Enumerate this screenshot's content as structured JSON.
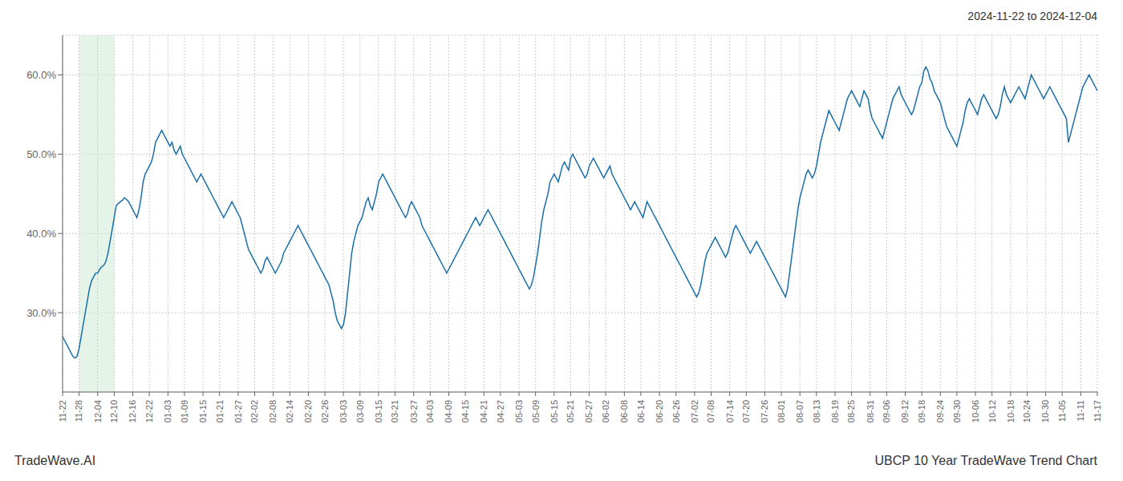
{
  "chart_data": {
    "type": "line",
    "title": "UBCP 10 Year TradeWave Trend Chart",
    "subtitle": "2024-11-22 to 2024-12-04",
    "annotations": [
      "TradeWave.AI"
    ],
    "color": "#1a6fa8",
    "grid": true,
    "ylim": [
      20.0,
      65.0
    ],
    "yticks": [
      {
        "value": 30.0,
        "label": "30.0%"
      },
      {
        "value": 40.0,
        "label": "40.0%"
      },
      {
        "value": 50.0,
        "label": "50.0%"
      },
      {
        "value": 60.0,
        "label": "60.0%"
      }
    ],
    "shaded_range": {
      "from": "11-28",
      "to": "12-10",
      "color": "#d4edda"
    },
    "categories": [
      "11-22",
      null,
      null,
      null,
      null,
      null,
      null,
      null,
      "11-28",
      null,
      null,
      null,
      null,
      null,
      null,
      null,
      null,
      "12-04",
      null,
      null,
      null,
      null,
      null,
      null,
      null,
      "12-10",
      null,
      null,
      null,
      null,
      null,
      null,
      null,
      null,
      "12-16",
      null,
      null,
      null,
      null,
      null,
      null,
      null,
      "12-22",
      null,
      null,
      null,
      null,
      null,
      null,
      null,
      null,
      "01-03",
      null,
      null,
      null,
      null,
      null,
      null,
      null,
      "01-09",
      null,
      null,
      null,
      null,
      null,
      null,
      null,
      null,
      "01-15",
      null,
      null,
      null,
      null,
      null,
      null,
      null,
      "01-21",
      null,
      null,
      null,
      null,
      null,
      null,
      null,
      null,
      "01-27",
      null,
      null,
      null,
      null,
      null,
      null,
      null,
      "02-02",
      null,
      null,
      null,
      null,
      null,
      null,
      null,
      null,
      "02-08",
      null,
      null,
      null,
      null,
      null,
      null,
      null,
      "02-14",
      null,
      null,
      null,
      null,
      null,
      null,
      null,
      null,
      "02-20",
      null,
      null,
      null,
      null,
      null,
      null,
      null,
      "02-26",
      null,
      null,
      null,
      null,
      null,
      null,
      null,
      null,
      "03-03",
      null,
      null,
      null,
      null,
      null,
      null,
      null,
      "03-09",
      null,
      null,
      null,
      null,
      null,
      null,
      null,
      null,
      "03-15",
      null,
      null,
      null,
      null,
      null,
      null,
      null,
      "03-21",
      null,
      null,
      null,
      null,
      null,
      null,
      null,
      null,
      "03-27",
      null,
      null,
      null,
      null,
      null,
      null,
      null,
      "04-03",
      null,
      null,
      null,
      null,
      null,
      null,
      null,
      null,
      "04-09",
      null,
      null,
      null,
      null,
      null,
      null,
      null,
      "04-15",
      null,
      null,
      null,
      null,
      null,
      null,
      null,
      null,
      "04-21",
      null,
      null,
      null,
      null,
      null,
      null,
      null,
      "04-27",
      null,
      null,
      null,
      null,
      null,
      null,
      null,
      null,
      "05-03",
      null,
      null,
      null,
      null,
      null,
      null,
      null,
      "05-09",
      null,
      null,
      null,
      null,
      null,
      null,
      null,
      null,
      "05-15",
      null,
      null,
      null,
      null,
      null,
      null,
      null,
      "05-21",
      null,
      null,
      null,
      null,
      null,
      null,
      null,
      null,
      "05-27",
      null,
      null,
      null,
      null,
      null,
      null,
      null,
      "06-02",
      null,
      null,
      null,
      null,
      null,
      null,
      null,
      null,
      "06-08",
      null,
      null,
      null,
      null,
      null,
      null,
      null,
      "06-14",
      null,
      null,
      null,
      null,
      null,
      null,
      null,
      null,
      "06-20",
      null,
      null,
      null,
      null,
      null,
      null,
      null,
      "06-26",
      null,
      null,
      null,
      null,
      null,
      null,
      null,
      null,
      "07-02",
      null,
      null,
      null,
      null,
      null,
      null,
      null,
      "07-08",
      null,
      null,
      null,
      null,
      null,
      null,
      null,
      null,
      "07-14",
      null,
      null,
      null,
      null,
      null,
      null,
      null,
      "07-20",
      null,
      null,
      null,
      null,
      null,
      null,
      null,
      null,
      "07-26",
      null,
      null,
      null,
      null,
      null,
      null,
      null,
      "08-01",
      null,
      null,
      null,
      null,
      null,
      null,
      null,
      null,
      "08-07",
      null,
      null,
      null,
      null,
      null,
      null,
      null,
      "08-13",
      null,
      null,
      null,
      null,
      null,
      null,
      null,
      null,
      "08-19",
      null,
      null,
      null,
      null,
      null,
      null,
      null,
      "08-25",
      null,
      null,
      null,
      null,
      null,
      null,
      null,
      null,
      "08-31",
      null,
      null,
      null,
      null,
      null,
      null,
      null,
      "09-06",
      null,
      null,
      null,
      null,
      null,
      null,
      null,
      null,
      "09-12",
      null,
      null,
      null,
      null,
      null,
      null,
      null,
      "09-18",
      null,
      null,
      null,
      null,
      null,
      null,
      null,
      null,
      "09-24",
      null,
      null,
      null,
      null,
      null,
      null,
      null,
      "09-30",
      null,
      null,
      null,
      null,
      null,
      null,
      null,
      null,
      "10-06",
      null,
      null,
      null,
      null,
      null,
      null,
      null,
      "10-12",
      null,
      null,
      null,
      null,
      null,
      null,
      null,
      null,
      "10-18",
      null,
      null,
      null,
      null,
      null,
      null,
      null,
      "10-24",
      null,
      null,
      null,
      null,
      null,
      null,
      null,
      null,
      "10-30",
      null,
      null,
      null,
      null,
      null,
      null,
      null,
      "11-05",
      null,
      null,
      null,
      null,
      null,
      null,
      null,
      null,
      "11-11",
      null,
      null,
      null,
      null,
      null,
      null,
      null,
      "11-17"
    ],
    "values": [
      27.0,
      26.5,
      26.0,
      25.5,
      25.0,
      24.5,
      24.3,
      24.5,
      25.5,
      27.0,
      28.5,
      30.0,
      31.5,
      33.0,
      34.0,
      34.5,
      35.0,
      35.0,
      35.5,
      35.8,
      36.0,
      36.5,
      37.5,
      39.0,
      40.5,
      42.0,
      43.5,
      43.8,
      44.0,
      44.2,
      44.5,
      44.3,
      44.0,
      43.5,
      43.0,
      42.5,
      42.0,
      43.0,
      44.5,
      46.5,
      47.5,
      48.0,
      48.5,
      49.0,
      50.0,
      51.5,
      52.0,
      52.5,
      53.0,
      52.5,
      52.0,
      51.5,
      51.0,
      51.5,
      50.5,
      50.0,
      50.5,
      51.0,
      50.0,
      49.5,
      49.0,
      48.5,
      48.0,
      47.5,
      47.0,
      46.5,
      47.0,
      47.5,
      47.0,
      46.5,
      46.0,
      45.5,
      45.0,
      44.5,
      44.0,
      43.5,
      43.0,
      42.5,
      42.0,
      42.5,
      43.0,
      43.5,
      44.0,
      43.5,
      43.0,
      42.5,
      42.0,
      41.0,
      40.0,
      39.0,
      38.0,
      37.5,
      37.0,
      36.5,
      36.0,
      35.5,
      35.0,
      35.5,
      36.5,
      37.0,
      36.5,
      36.0,
      35.5,
      35.0,
      35.5,
      36.0,
      36.5,
      37.5,
      38.0,
      38.5,
      39.0,
      39.5,
      40.0,
      40.5,
      41.0,
      40.5,
      40.0,
      39.5,
      39.0,
      38.5,
      38.0,
      37.5,
      37.0,
      36.5,
      36.0,
      35.5,
      35.0,
      34.5,
      34.0,
      33.5,
      32.5,
      31.5,
      30.0,
      29.0,
      28.5,
      28.0,
      28.5,
      30.0,
      32.5,
      35.0,
      37.5,
      39.0,
      40.0,
      41.0,
      41.5,
      42.0,
      43.0,
      44.0,
      44.5,
      43.5,
      43.0,
      44.0,
      45.0,
      46.5,
      47.0,
      47.5,
      47.0,
      46.5,
      46.0,
      45.5,
      45.0,
      44.5,
      44.0,
      43.5,
      43.0,
      42.5,
      42.0,
      42.5,
      43.5,
      44.0,
      43.5,
      43.0,
      42.5,
      42.0,
      41.0,
      40.5,
      40.0,
      39.5,
      39.0,
      38.5,
      38.0,
      37.5,
      37.0,
      36.5,
      36.0,
      35.5,
      35.0,
      35.5,
      36.0,
      36.5,
      37.0,
      37.5,
      38.0,
      38.5,
      39.0,
      39.5,
      40.0,
      40.5,
      41.0,
      41.5,
      42.0,
      41.5,
      41.0,
      41.5,
      42.0,
      42.5,
      43.0,
      42.5,
      42.0,
      41.5,
      41.0,
      40.5,
      40.0,
      39.5,
      39.0,
      38.5,
      38.0,
      37.5,
      37.0,
      36.5,
      36.0,
      35.5,
      35.0,
      34.5,
      34.0,
      33.5,
      33.0,
      33.5,
      34.5,
      36.0,
      37.5,
      39.5,
      41.5,
      43.0,
      44.0,
      45.0,
      46.5,
      47.0,
      47.5,
      47.0,
      46.5,
      47.5,
      48.5,
      49.0,
      48.5,
      48.0,
      49.5,
      50.0,
      49.5,
      49.0,
      48.5,
      48.0,
      47.5,
      47.0,
      47.5,
      48.5,
      49.0,
      49.5,
      49.0,
      48.5,
      48.0,
      47.5,
      47.0,
      47.5,
      48.0,
      48.5,
      47.5,
      47.0,
      46.5,
      46.0,
      45.5,
      45.0,
      44.5,
      44.0,
      43.5,
      43.0,
      43.5,
      44.0,
      43.5,
      43.0,
      42.5,
      42.0,
      43.0,
      44.0,
      43.5,
      43.0,
      42.5,
      42.0,
      41.5,
      41.0,
      40.5,
      40.0,
      39.5,
      39.0,
      38.5,
      38.0,
      37.5,
      37.0,
      36.5,
      36.0,
      35.5,
      35.0,
      34.5,
      34.0,
      33.5,
      33.0,
      32.5,
      32.0,
      32.5,
      33.5,
      35.0,
      36.5,
      37.5,
      38.0,
      38.5,
      39.0,
      39.5,
      39.0,
      38.5,
      38.0,
      37.5,
      37.0,
      37.5,
      38.5,
      39.5,
      40.5,
      41.0,
      40.5,
      40.0,
      39.5,
      39.0,
      38.5,
      38.0,
      37.5,
      38.0,
      38.5,
      39.0,
      38.5,
      38.0,
      37.5,
      37.0,
      36.5,
      36.0,
      35.5,
      35.0,
      34.5,
      34.0,
      33.5,
      33.0,
      32.5,
      32.0,
      33.0,
      35.0,
      37.0,
      39.0,
      41.0,
      43.0,
      44.5,
      45.5,
      46.5,
      47.5,
      48.0,
      47.5,
      47.0,
      47.5,
      48.5,
      50.0,
      51.5,
      52.5,
      53.5,
      54.5,
      55.5,
      55.0,
      54.5,
      54.0,
      53.5,
      53.0,
      54.0,
      55.0,
      56.0,
      57.0,
      57.5,
      58.0,
      57.5,
      57.0,
      56.5,
      56.0,
      57.0,
      58.0,
      57.5,
      57.0,
      55.5,
      54.5,
      54.0,
      53.5,
      53.0,
      52.5,
      52.0,
      53.0,
      54.0,
      55.0,
      56.0,
      57.0,
      57.5,
      58.0,
      58.5,
      57.5,
      57.0,
      56.5,
      56.0,
      55.5,
      55.0,
      55.5,
      56.5,
      57.5,
      58.5,
      59.0,
      60.5,
      61.0,
      60.5,
      59.5,
      59.0,
      58.0,
      57.5,
      57.0,
      56.5,
      55.5,
      54.5,
      53.5,
      53.0,
      52.5,
      52.0,
      51.5,
      51.0,
      52.0,
      53.0,
      54.0,
      55.5,
      56.5,
      57.0,
      56.5,
      56.0,
      55.5,
      55.0,
      56.0,
      57.0,
      57.5,
      57.0,
      56.5,
      56.0,
      55.5,
      55.0,
      54.5,
      55.0,
      56.0,
      57.5,
      58.5,
      57.5,
      57.0,
      56.5,
      57.0,
      57.5,
      58.0,
      58.5,
      58.0,
      57.5,
      57.0,
      58.0,
      59.0,
      60.0,
      59.5,
      59.0,
      58.5,
      58.0,
      57.5,
      57.0,
      57.5,
      58.0,
      58.5,
      58.0,
      57.5,
      57.0,
      56.5,
      56.0,
      55.5,
      55.0,
      54.5,
      51.5,
      52.5,
      53.5,
      54.5,
      55.5,
      56.5,
      57.5,
      58.5,
      59.0,
      59.5,
      60.0,
      59.5,
      59.0,
      58.5,
      58.0
    ]
  }
}
